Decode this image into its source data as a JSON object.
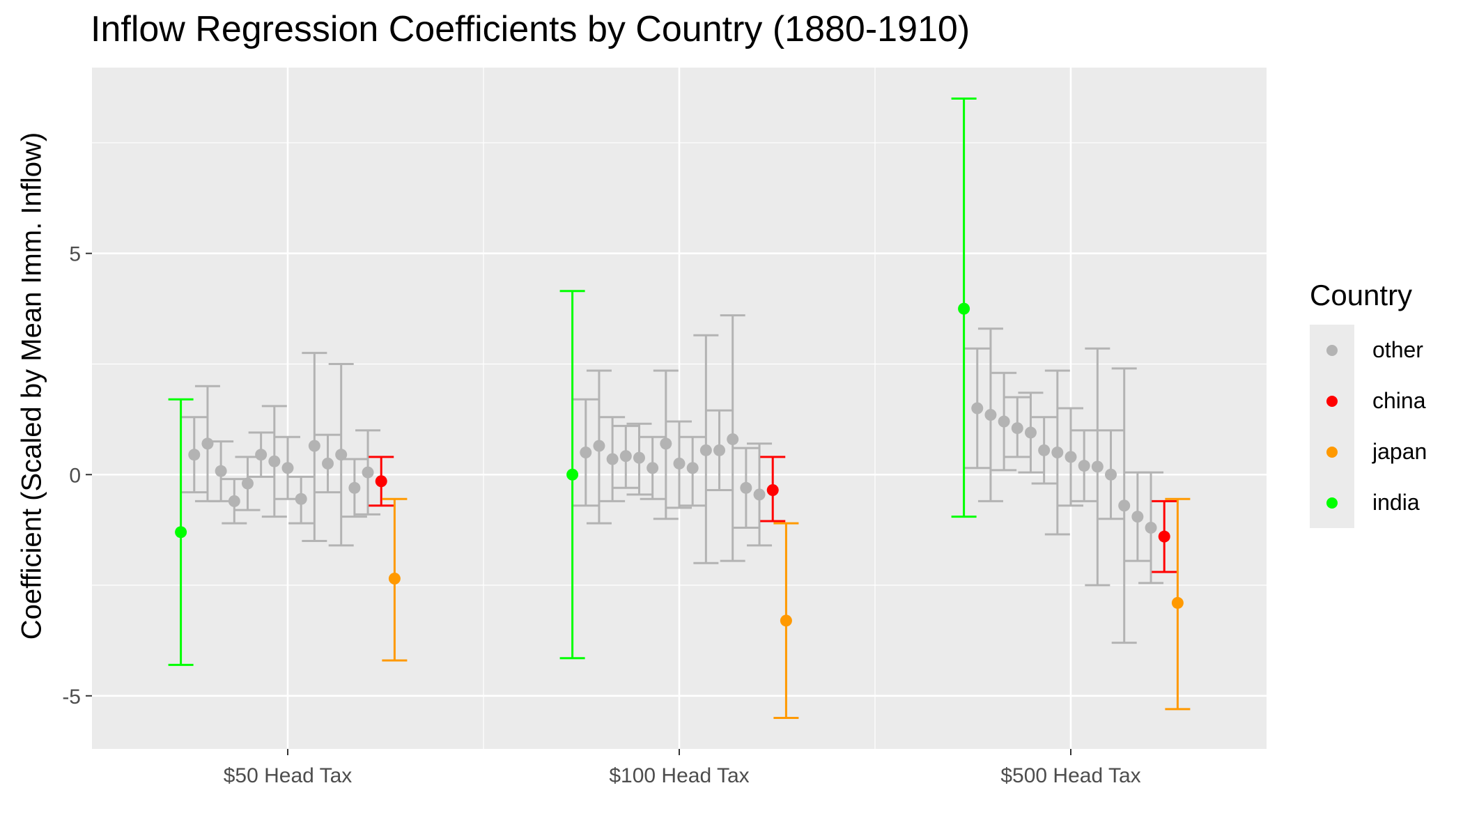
{
  "chart_data": {
    "type": "errorbar",
    "title": "Inflow Regression Coefficients by Country (1880-1910)",
    "xlabel": "",
    "ylabel": "Coefficient (Scaled by Mean Imm. Inflow)",
    "ylim": [
      -6.2,
      9.2
    ],
    "y_ticks": [
      -5,
      0,
      5
    ],
    "y_tick_labels": [
      "-5",
      "0",
      "5"
    ],
    "categories": [
      "$50 Head Tax",
      "$100 Head Tax",
      "$500 Head Tax"
    ],
    "grid": true,
    "legend_title": "Country",
    "legend_position": "right",
    "legend": [
      {
        "key": "other",
        "label": "other",
        "color": "#b3b3b3"
      },
      {
        "key": "china",
        "label": "china",
        "color": "#ff0000"
      },
      {
        "key": "japan",
        "label": "japan",
        "color": "#ff9900"
      },
      {
        "key": "india",
        "label": "india",
        "color": "#00ff00"
      }
    ],
    "groups": [
      {
        "category": "$50 Head Tax",
        "points": [
          {
            "country": "india",
            "y": -1.3,
            "lo": -4.3,
            "hi": 1.7
          },
          {
            "country": "other",
            "y": 0.45,
            "lo": -0.4,
            "hi": 1.3
          },
          {
            "country": "other",
            "y": 0.7,
            "lo": -0.6,
            "hi": 2.0
          },
          {
            "country": "other",
            "y": 0.08,
            "lo": -0.6,
            "hi": 0.75
          },
          {
            "country": "other",
            "y": -0.6,
            "lo": -1.1,
            "hi": -0.1
          },
          {
            "country": "other",
            "y": -0.2,
            "lo": -0.8,
            "hi": 0.4
          },
          {
            "country": "other",
            "y": 0.45,
            "lo": -0.05,
            "hi": 0.95
          },
          {
            "country": "other",
            "y": 0.3,
            "lo": -0.95,
            "hi": 1.55
          },
          {
            "country": "other",
            "y": 0.15,
            "lo": -0.55,
            "hi": 0.85
          },
          {
            "country": "other",
            "y": -0.55,
            "lo": -1.1,
            "hi": -0.05
          },
          {
            "country": "other",
            "y": 0.65,
            "lo": -1.5,
            "hi": 2.75
          },
          {
            "country": "other",
            "y": 0.25,
            "lo": -0.4,
            "hi": 0.9
          },
          {
            "country": "other",
            "y": 0.45,
            "lo": -1.6,
            "hi": 2.5
          },
          {
            "country": "other",
            "y": -0.3,
            "lo": -0.95,
            "hi": 0.35
          },
          {
            "country": "other",
            "y": 0.05,
            "lo": -0.9,
            "hi": 1.0
          },
          {
            "country": "china",
            "y": -0.15,
            "lo": -0.7,
            "hi": 0.4
          },
          {
            "country": "japan",
            "y": -2.35,
            "lo": -4.2,
            "hi": -0.55
          }
        ]
      },
      {
        "category": "$100 Head Tax",
        "points": [
          {
            "country": "india",
            "y": 0.0,
            "lo": -4.15,
            "hi": 4.15
          },
          {
            "country": "other",
            "y": 0.5,
            "lo": -0.7,
            "hi": 1.7
          },
          {
            "country": "other",
            "y": 0.65,
            "lo": -1.1,
            "hi": 2.35
          },
          {
            "country": "other",
            "y": 0.35,
            "lo": -0.6,
            "hi": 1.3
          },
          {
            "country": "other",
            "y": 0.42,
            "lo": -0.3,
            "hi": 1.1
          },
          {
            "country": "other",
            "y": 0.38,
            "lo": -0.45,
            "hi": 1.15
          },
          {
            "country": "other",
            "y": 0.15,
            "lo": -0.55,
            "hi": 0.85
          },
          {
            "country": "other",
            "y": 0.7,
            "lo": -1.0,
            "hi": 2.35
          },
          {
            "country": "other",
            "y": 0.25,
            "lo": -0.75,
            "hi": 1.2
          },
          {
            "country": "other",
            "y": 0.15,
            "lo": -0.7,
            "hi": 0.85
          },
          {
            "country": "other",
            "y": 0.55,
            "lo": -2.0,
            "hi": 3.15
          },
          {
            "country": "other",
            "y": 0.55,
            "lo": -0.35,
            "hi": 1.45
          },
          {
            "country": "other",
            "y": 0.8,
            "lo": -1.95,
            "hi": 3.6
          },
          {
            "country": "other",
            "y": -0.3,
            "lo": -1.2,
            "hi": 0.6
          },
          {
            "country": "other",
            "y": -0.45,
            "lo": -1.6,
            "hi": 0.7
          },
          {
            "country": "china",
            "y": -0.35,
            "lo": -1.05,
            "hi": 0.4
          },
          {
            "country": "japan",
            "y": -3.3,
            "lo": -5.5,
            "hi": -1.1
          }
        ]
      },
      {
        "category": "$500 Head Tax",
        "points": [
          {
            "country": "india",
            "y": 3.75,
            "lo": -0.95,
            "hi": 8.5
          },
          {
            "country": "other",
            "y": 1.5,
            "lo": 0.15,
            "hi": 2.85
          },
          {
            "country": "other",
            "y": 1.35,
            "lo": -0.6,
            "hi": 3.3
          },
          {
            "country": "other",
            "y": 1.2,
            "lo": 0.1,
            "hi": 2.3
          },
          {
            "country": "other",
            "y": 1.05,
            "lo": 0.4,
            "hi": 1.75
          },
          {
            "country": "other",
            "y": 0.95,
            "lo": 0.05,
            "hi": 1.85
          },
          {
            "country": "other",
            "y": 0.55,
            "lo": -0.2,
            "hi": 1.3
          },
          {
            "country": "other",
            "y": 0.5,
            "lo": -1.35,
            "hi": 2.35
          },
          {
            "country": "other",
            "y": 0.4,
            "lo": -0.7,
            "hi": 1.5
          },
          {
            "country": "other",
            "y": 0.2,
            "lo": -0.6,
            "hi": 1.0
          },
          {
            "country": "other",
            "y": 0.18,
            "lo": -2.5,
            "hi": 2.85
          },
          {
            "country": "other",
            "y": 0.0,
            "lo": -1.0,
            "hi": 1.0
          },
          {
            "country": "other",
            "y": -0.7,
            "lo": -3.8,
            "hi": 2.4
          },
          {
            "country": "other",
            "y": -0.95,
            "lo": -1.95,
            "hi": 0.05
          },
          {
            "country": "other",
            "y": -1.2,
            "lo": -2.45,
            "hi": 0.05
          },
          {
            "country": "china",
            "y": -1.4,
            "lo": -2.2,
            "hi": -0.6
          },
          {
            "country": "japan",
            "y": -2.9,
            "lo": -5.3,
            "hi": -0.55
          }
        ]
      }
    ]
  }
}
